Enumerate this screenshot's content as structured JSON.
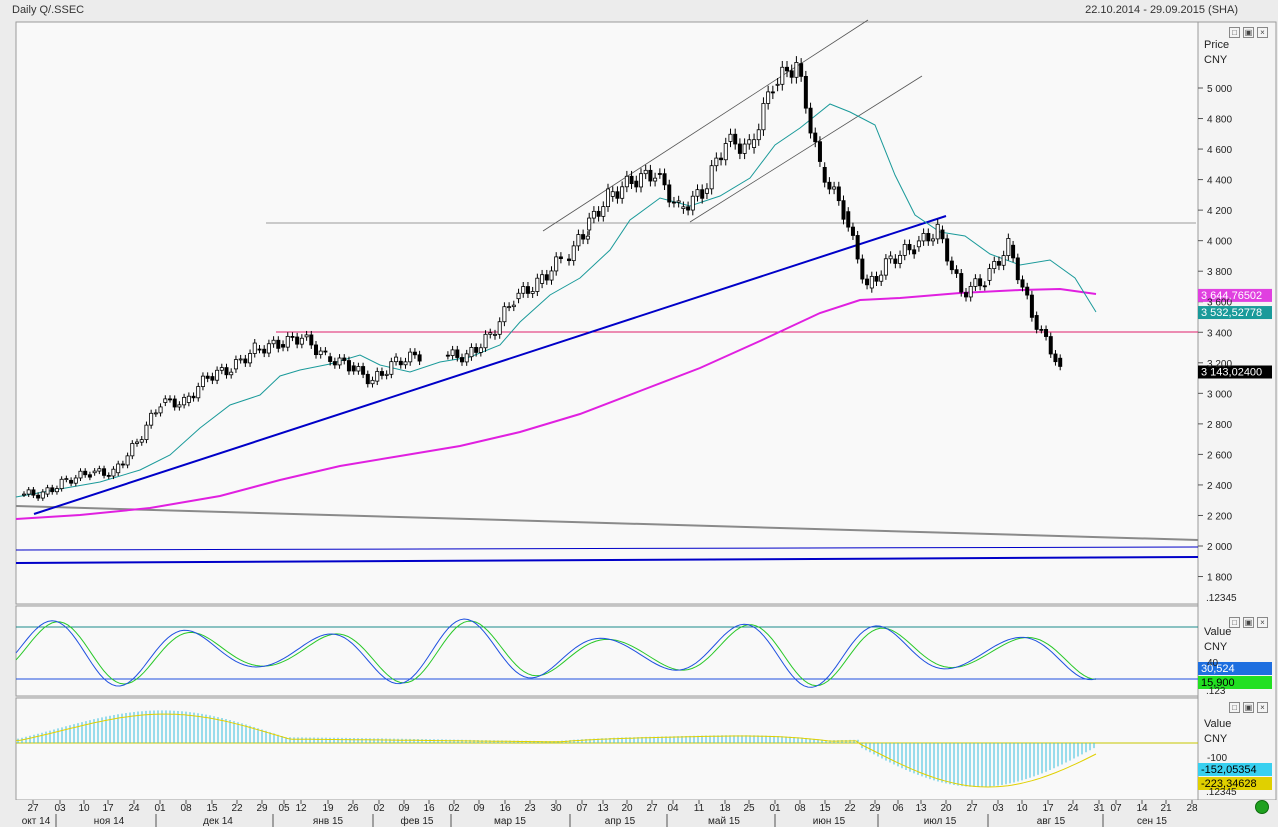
{
  "header": {
    "title": "Daily Q/.SSEC",
    "range": "22.10.2014 - 29.09.2015 (SHA)"
  },
  "price_panel": {
    "axis_title": "Price",
    "axis_unit": "CNY",
    "ticks": [
      "5 000",
      "4 800",
      "4 600",
      "4 400",
      "4 200",
      "4 000",
      "3 800",
      "3 600",
      "3 400",
      "3 200",
      "3 000",
      "2 800",
      "2 600",
      "2 400",
      "2 200",
      "2 000",
      "1 800"
    ],
    "scale_label": ".12345",
    "tags": [
      {
        "text": "3 644,76502",
        "bg": "#e040e0",
        "fg": "#ffffff",
        "value": 3644.77
      },
      {
        "text": "3 532,52778",
        "bg": "#1a9a9a",
        "fg": "#ffffff",
        "value": 3532.53
      },
      {
        "text": "3 143,02400",
        "bg": "#000000",
        "fg": "#ffffff",
        "value": 3143.02
      }
    ]
  },
  "stoch_panel": {
    "axis_title": "Value",
    "axis_unit": "CNY",
    "tick": "40",
    "scale_label": ".123",
    "tags": [
      {
        "text": "30,524",
        "bg": "#1e6fe0",
        "fg": "#ffffff"
      },
      {
        "text": "15,900",
        "bg": "#22e022",
        "fg": "#000000"
      }
    ]
  },
  "macd_panel": {
    "axis_title": "Value",
    "axis_unit": "CNY",
    "tick": "-100",
    "scale_label": ".12345",
    "tags": [
      {
        "text": "-152,05354",
        "bg": "#38d0f0",
        "fg": "#000000"
      },
      {
        "text": "-223,34628",
        "bg": "#e0d000",
        "fg": "#000000"
      }
    ]
  },
  "x_axis": {
    "days": [
      "27",
      "03",
      "10",
      "17",
      "24",
      "01",
      "08",
      "15",
      "22",
      "29",
      "05",
      "12",
      "19",
      "26",
      "02",
      "09",
      "16",
      "02",
      "09",
      "16",
      "23",
      "30",
      "07",
      "13",
      "20",
      "27",
      "04",
      "11",
      "18",
      "25",
      "01",
      "08",
      "15",
      "22",
      "29",
      "06",
      "13",
      "20",
      "27",
      "03",
      "10",
      "17",
      "24",
      "31",
      "07",
      "14",
      "21",
      "28"
    ],
    "months": [
      "окт 14",
      "ноя 14",
      "дек 14",
      "янв 15",
      "фев 15",
      "мар 15",
      "апр 15",
      "май 15",
      "июн 15",
      "июл 15",
      "авг 15",
      "сен 15"
    ]
  },
  "chart_data": {
    "type": "candlestick",
    "title": "Daily Q/.SSEC",
    "ylabel": "Price CNY",
    "ylim": [
      1700,
      5400
    ],
    "x_range": [
      "22.10.2014",
      "29.09.2015"
    ],
    "weekly_closes": [
      {
        "week": "27.10.2014",
        "close": 2340
      },
      {
        "week": "03.11.2014",
        "close": 2430
      },
      {
        "week": "10.11.2014",
        "close": 2480
      },
      {
        "week": "17.11.2014",
        "close": 2480
      },
      {
        "week": "24.11.2014",
        "close": 2680
      },
      {
        "week": "01.12.2014",
        "close": 2940
      },
      {
        "week": "08.12.2014",
        "close": 2940
      },
      {
        "week": "15.12.2014",
        "close": 3110
      },
      {
        "week": "22.12.2014",
        "close": 3160
      },
      {
        "week": "29.12.2014",
        "close": 3290
      },
      {
        "week": "05.01.2015",
        "close": 3320
      },
      {
        "week": "12.01.2015",
        "close": 3370
      },
      {
        "week": "19.01.2015",
        "close": 3240
      },
      {
        "week": "26.01.2015",
        "close": 3180
      },
      {
        "week": "02.02.2015",
        "close": 3080
      },
      {
        "week": "09.02.2015",
        "close": 3210
      },
      {
        "week": "16.02.2015",
        "close": 3250
      },
      {
        "week": "02.03.2015",
        "close": 3240
      },
      {
        "week": "09.03.2015",
        "close": 3380
      },
      {
        "week": "16.03.2015",
        "close": 3620
      },
      {
        "week": "23.03.2015",
        "close": 3720
      },
      {
        "week": "30.03.2015",
        "close": 3880
      },
      {
        "week": "07.04.2015",
        "close": 4070
      },
      {
        "week": "13.04.2015",
        "close": 4290
      },
      {
        "week": "20.04.2015",
        "close": 4390
      },
      {
        "week": "27.04.2015",
        "close": 4440
      },
      {
        "week": "04.05.2015",
        "close": 4210
      },
      {
        "week": "11.05.2015",
        "close": 4310
      },
      {
        "week": "18.05.2015",
        "close": 4650
      },
      {
        "week": "25.05.2015",
        "close": 4610
      },
      {
        "week": "01.06.2015",
        "close": 5020
      },
      {
        "week": "08.06.2015",
        "close": 5160
      },
      {
        "week": "15.06.2015",
        "close": 4480
      },
      {
        "week": "22.06.2015",
        "close": 4190
      },
      {
        "week": "29.06.2015",
        "close": 3690
      },
      {
        "week": "06.07.2015",
        "close": 3880
      },
      {
        "week": "13.07.2015",
        "close": 3960
      },
      {
        "week": "20.07.2015",
        "close": 4070
      },
      {
        "week": "27.07.2015",
        "close": 3660
      },
      {
        "week": "03.08.2015",
        "close": 3740
      },
      {
        "week": "10.08.2015",
        "close": 3970
      },
      {
        "week": "17.08.2015",
        "close": 3510
      },
      {
        "week": "24.08.2015",
        "close": 3230
      },
      {
        "week": "31.08.2015",
        "close": 3143
      }
    ],
    "overlays": [
      {
        "kind": "moving-average-short",
        "color": "#1a9a9a",
        "last": 3532.53
      },
      {
        "kind": "moving-average-long",
        "color": "#e020e0",
        "last": 3644.77
      },
      {
        "kind": "horizontal-line",
        "color": "#e0206a",
        "value": 3400
      },
      {
        "kind": "horizontal-line",
        "color": "#a0a0a0",
        "value": 4110
      }
    ],
    "stochastic": {
      "ylim": [
        0,
        100
      ],
      "levels": [
        80,
        20
      ],
      "last_k": 30.524,
      "last_d": 15.9
    },
    "macd": {
      "last_histogram": -152.05354,
      "last_signal": -223.34628
    }
  },
  "colors": {
    "price_up": "#ffffff",
    "price_down": "#000000",
    "trend": "#0000c8",
    "ma_short": "#1a9a9a",
    "ma_long": "#e020e0",
    "resistance": "#e0206a",
    "stoch_k": "#1e50e0",
    "stoch_d": "#28c828",
    "macd_hist": "#38c0e0",
    "macd_signal": "#e0d000"
  },
  "icons": [
    "restore-icon",
    "maximize-icon",
    "close-icon",
    "status-indicator-icon"
  ]
}
